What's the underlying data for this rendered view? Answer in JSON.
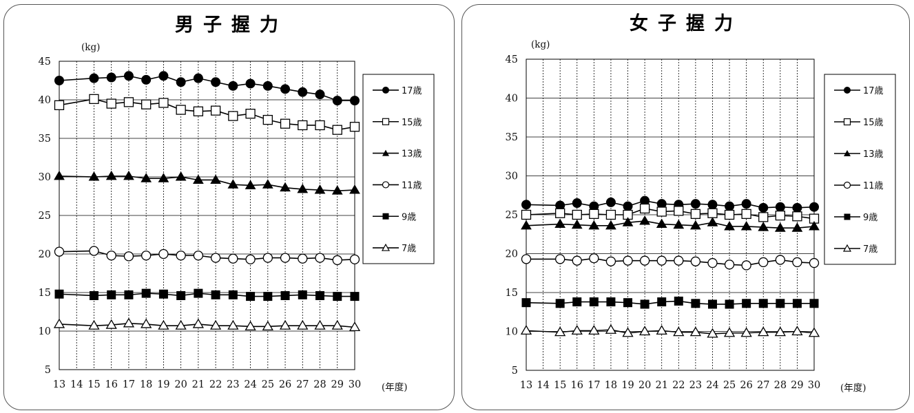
{
  "chart_data": [
    {
      "type": "line",
      "title": "男子握力",
      "ylabel": "(kg)",
      "xlabel": "(年度)",
      "ylim": [
        5,
        45
      ],
      "yticks": [
        5,
        10,
        15,
        20,
        25,
        30,
        35,
        40,
        45
      ],
      "categories": [
        13,
        14,
        15,
        16,
        17,
        18,
        19,
        20,
        21,
        22,
        23,
        24,
        25,
        26,
        27,
        28,
        29,
        30
      ],
      "grid": true,
      "legend": "right",
      "series": [
        {
          "name": "17歳",
          "marker": "circle-filled",
          "x": [
            13,
            15,
            16,
            17,
            18,
            19,
            20,
            21,
            22,
            23,
            24,
            25,
            26,
            27,
            28,
            29,
            30
          ],
          "values": [
            42.5,
            42.8,
            42.9,
            43.1,
            42.6,
            43.1,
            42.3,
            42.8,
            42.3,
            41.8,
            42.1,
            41.8,
            41.4,
            41.0,
            40.7,
            39.9,
            39.9
          ]
        },
        {
          "name": "15歳",
          "marker": "square-open",
          "x": [
            13,
            15,
            16,
            17,
            18,
            19,
            20,
            21,
            22,
            23,
            24,
            25,
            26,
            27,
            28,
            29,
            30
          ],
          "values": [
            39.3,
            40.1,
            39.5,
            39.7,
            39.4,
            39.6,
            38.7,
            38.5,
            38.6,
            37.9,
            38.2,
            37.4,
            36.9,
            36.7,
            36.7,
            36.1,
            36.5
          ]
        },
        {
          "name": "13歳",
          "marker": "triangle-filled",
          "x": [
            13,
            15,
            16,
            17,
            18,
            19,
            20,
            21,
            22,
            23,
            24,
            25,
            26,
            27,
            28,
            29,
            30
          ],
          "values": [
            30.1,
            30.0,
            30.1,
            30.1,
            29.8,
            29.8,
            30.0,
            29.6,
            29.6,
            29.0,
            28.9,
            29.0,
            28.6,
            28.4,
            28.3,
            28.2,
            28.3
          ]
        },
        {
          "name": "11歳",
          "marker": "circle-open",
          "x": [
            13,
            15,
            16,
            17,
            18,
            19,
            20,
            21,
            22,
            23,
            24,
            25,
            26,
            27,
            28,
            29,
            30
          ],
          "values": [
            20.3,
            20.4,
            19.8,
            19.7,
            19.8,
            20.0,
            19.8,
            19.8,
            19.5,
            19.4,
            19.3,
            19.5,
            19.5,
            19.4,
            19.5,
            19.2,
            19.3
          ]
        },
        {
          "name": "9歳",
          "marker": "square-filled",
          "x": [
            13,
            15,
            16,
            17,
            18,
            19,
            20,
            21,
            22,
            23,
            24,
            25,
            26,
            27,
            28,
            29,
            30
          ],
          "values": [
            14.8,
            14.6,
            14.7,
            14.7,
            14.9,
            14.8,
            14.6,
            14.9,
            14.7,
            14.7,
            14.5,
            14.5,
            14.6,
            14.7,
            14.6,
            14.5,
            14.5
          ]
        },
        {
          "name": "7歳",
          "marker": "triangle-open",
          "x": [
            13,
            15,
            16,
            17,
            18,
            19,
            20,
            21,
            22,
            23,
            24,
            25,
            26,
            27,
            28,
            29,
            30
          ],
          "values": [
            10.9,
            10.7,
            10.8,
            11.0,
            10.9,
            10.7,
            10.7,
            10.9,
            10.7,
            10.7,
            10.6,
            10.6,
            10.7,
            10.7,
            10.7,
            10.7,
            10.5
          ]
        }
      ]
    },
    {
      "type": "line",
      "title": "女子握力",
      "ylabel": "(kg)",
      "xlabel": "(年度)",
      "ylim": [
        5,
        45
      ],
      "yticks": [
        5,
        10,
        15,
        20,
        25,
        30,
        35,
        40,
        45
      ],
      "categories": [
        13,
        14,
        15,
        16,
        17,
        18,
        19,
        20,
        21,
        22,
        23,
        24,
        25,
        26,
        27,
        28,
        29,
        30
      ],
      "grid": true,
      "legend": "right",
      "series": [
        {
          "name": "17歳",
          "marker": "circle-filled",
          "x": [
            13,
            15,
            16,
            17,
            18,
            19,
            20,
            21,
            22,
            23,
            24,
            25,
            26,
            27,
            28,
            29,
            30
          ],
          "values": [
            26.3,
            26.2,
            26.5,
            26.1,
            26.6,
            26.1,
            26.8,
            26.4,
            26.3,
            26.4,
            26.3,
            26.1,
            26.4,
            25.9,
            26.0,
            25.9,
            26.0
          ]
        },
        {
          "name": "15歳",
          "marker": "square-open",
          "x": [
            13,
            15,
            16,
            17,
            18,
            19,
            20,
            21,
            22,
            23,
            24,
            25,
            26,
            27,
            28,
            29,
            30
          ],
          "values": [
            25.0,
            25.2,
            25.0,
            25.1,
            25.0,
            25.0,
            25.8,
            25.4,
            25.5,
            25.1,
            25.2,
            25.0,
            25.1,
            24.7,
            24.9,
            24.8,
            24.5
          ]
        },
        {
          "name": "13歳",
          "marker": "triangle-filled",
          "x": [
            13,
            15,
            16,
            17,
            18,
            19,
            20,
            21,
            22,
            23,
            24,
            25,
            26,
            27,
            28,
            29,
            30
          ],
          "values": [
            23.6,
            23.8,
            23.7,
            23.6,
            23.6,
            24.0,
            24.2,
            23.8,
            23.7,
            23.6,
            24.0,
            23.5,
            23.5,
            23.4,
            23.3,
            23.3,
            23.5
          ]
        },
        {
          "name": "11歳",
          "marker": "circle-open",
          "x": [
            13,
            15,
            16,
            17,
            18,
            19,
            20,
            21,
            22,
            23,
            24,
            25,
            26,
            27,
            28,
            29,
            30
          ],
          "values": [
            19.3,
            19.3,
            19.1,
            19.4,
            19.0,
            19.1,
            19.1,
            19.1,
            19.1,
            19.0,
            18.8,
            18.6,
            18.5,
            18.9,
            19.2,
            18.9,
            18.8
          ]
        },
        {
          "name": "9歳",
          "marker": "square-filled",
          "x": [
            13,
            15,
            16,
            17,
            18,
            19,
            20,
            21,
            22,
            23,
            24,
            25,
            26,
            27,
            28,
            29,
            30
          ],
          "values": [
            13.7,
            13.6,
            13.8,
            13.8,
            13.8,
            13.7,
            13.5,
            13.8,
            13.9,
            13.6,
            13.5,
            13.5,
            13.6,
            13.6,
            13.6,
            13.6,
            13.6
          ]
        },
        {
          "name": "7歳",
          "marker": "triangle-open",
          "x": [
            13,
            15,
            16,
            17,
            18,
            19,
            20,
            21,
            22,
            23,
            24,
            25,
            26,
            27,
            28,
            29,
            30
          ],
          "values": [
            10.1,
            9.9,
            10.1,
            10.1,
            10.2,
            9.8,
            10.0,
            10.1,
            9.9,
            9.9,
            9.7,
            9.8,
            9.8,
            9.9,
            9.9,
            10.0,
            9.8
          ]
        }
      ]
    }
  ]
}
